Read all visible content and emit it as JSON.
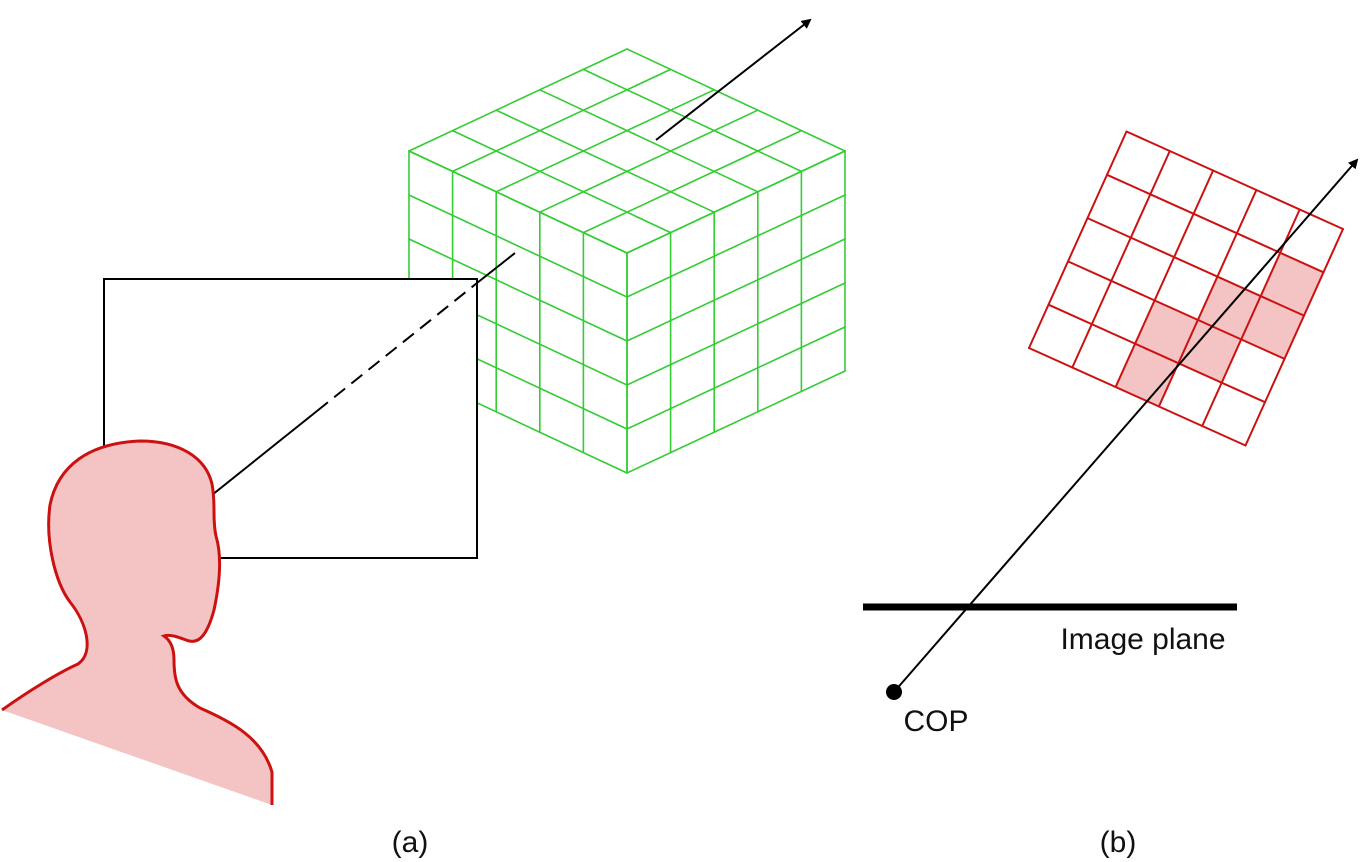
{
  "labels": {
    "image_plane": "Image plane",
    "cop": "COP",
    "panel_a": "(a)",
    "panel_b": "(b)"
  },
  "colors": {
    "volume_grid": "#33cc33",
    "head_fill": "#f4c3c3",
    "head_outline": "#cc1111",
    "ray": "#000000",
    "slice_grid": "#cc1111",
    "highlight_cells": "#f4c3c3"
  },
  "volume": {
    "columns": 5,
    "rows": 5,
    "depth": 5
  },
  "slice": {
    "columns": 5,
    "rows": 5
  },
  "icons": {
    "head": "head-silhouette-icon",
    "arrow": "arrow-head-icon",
    "cop_point": "dot-icon"
  }
}
